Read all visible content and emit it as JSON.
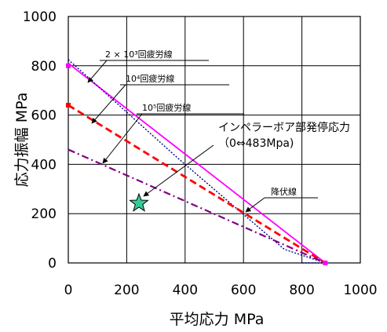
{
  "chart_data": {
    "type": "line",
    "xlabel": "平均応力  MPa",
    "ylabel": "応力振幅  MPa",
    "xlim": [
      0,
      1000
    ],
    "ylim": [
      0,
      1000
    ],
    "xticks": [
      "0",
      "200",
      "400",
      "600",
      "800",
      "1000"
    ],
    "yticks": [
      "0",
      "200",
      "400",
      "600",
      "800",
      "1000"
    ],
    "grid": true,
    "series": [
      {
        "name": "降伏線",
        "style": "solid",
        "color": "#ff00ff",
        "points": [
          [
            0,
            810
          ],
          [
            880,
            0
          ]
        ]
      },
      {
        "name": "2×10³回疲労線",
        "style": "dotted",
        "color": "#00008b",
        "points": [
          [
            0,
            825
          ],
          [
            380,
            420
          ],
          [
            740,
            55
          ],
          [
            880,
            0
          ]
        ]
      },
      {
        "name": "10⁴回疲労線",
        "style": "dashed",
        "color": "#ff0000",
        "points": [
          [
            0,
            640
          ],
          [
            880,
            0
          ]
        ]
      },
      {
        "name": "10⁵回疲労線",
        "style": "dashdot",
        "color": "#800080",
        "points": [
          [
            0,
            460
          ],
          [
            880,
            0
          ]
        ]
      },
      {
        "name": "",
        "style": "dotted",
        "color": "#00008b",
        "points": [
          [
            800,
            0
          ],
          [
            880,
            0
          ]
        ]
      }
    ],
    "markers": [
      {
        "type": "star",
        "x": 242,
        "y": 242,
        "color": "#33cc99"
      },
      {
        "type": "square",
        "x": 0,
        "y": 800,
        "color": "#ff00ff"
      },
      {
        "type": "square",
        "x": 0,
        "y": 640,
        "color": "#ff0000"
      },
      {
        "type": "square",
        "x": 880,
        "y": 0,
        "color": "#ff00ff"
      }
    ],
    "annotations": [
      {
        "label": "2 × 10³回疲労線"
      },
      {
        "label": "10⁴回疲労線"
      },
      {
        "label": "10⁵回疲労線"
      },
      {
        "label": "インペラーボア部発停応力",
        "sub": "（0⇔483Mpa)"
      },
      {
        "label": "降伏線"
      }
    ]
  }
}
